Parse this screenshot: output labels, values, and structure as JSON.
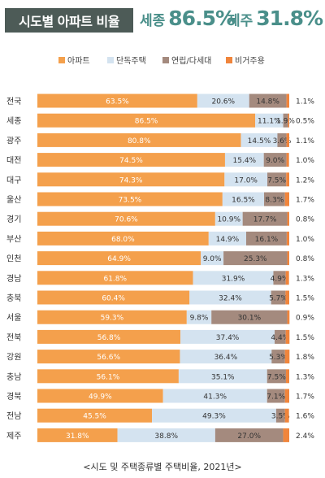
{
  "header": {
    "title": "시도별 아파트 비율",
    "highlights": [
      {
        "name": "세종",
        "value": "86.5%"
      },
      {
        "name": "제주",
        "value": "31.8%"
      }
    ]
  },
  "caption": "<시도 및 주택종류별 주택비율, 2021년>",
  "chart_data": {
    "type": "bar",
    "orientation": "horizontal",
    "stacked": true,
    "legend_position": "top",
    "categories": [
      "전국",
      "세종",
      "광주",
      "대전",
      "대구",
      "울산",
      "경기",
      "부산",
      "인천",
      "경남",
      "충북",
      "서울",
      "전북",
      "강원",
      "충남",
      "경북",
      "전남",
      "제주"
    ],
    "series": [
      {
        "name": "아파트",
        "color": "#f4a04c",
        "values": [
          63.5,
          86.5,
          80.8,
          74.5,
          74.3,
          73.5,
          70.6,
          68.0,
          64.9,
          61.8,
          60.4,
          59.3,
          56.8,
          56.6,
          56.1,
          49.9,
          45.5,
          31.8
        ]
      },
      {
        "name": "단독주택",
        "color": "#d4e3f0",
        "values": [
          20.6,
          11.1,
          14.5,
          15.4,
          17.0,
          16.5,
          10.9,
          14.9,
          9.0,
          31.9,
          32.4,
          9.8,
          37.4,
          36.4,
          35.1,
          41.3,
          49.3,
          38.8
        ]
      },
      {
        "name": "연립/다세대",
        "color": "#a48a7e",
        "values": [
          14.8,
          1.9,
          3.6,
          9.0,
          7.5,
          8.3,
          17.7,
          16.1,
          25.3,
          4.9,
          5.7,
          30.1,
          4.4,
          5.3,
          7.5,
          7.1,
          3.5,
          27.0
        ]
      },
      {
        "name": "비거주용",
        "color": "#f0853c",
        "values": [
          1.1,
          0.5,
          1.1,
          1.0,
          1.2,
          1.7,
          0.8,
          1.0,
          0.8,
          1.3,
          1.5,
          0.9,
          1.5,
          1.8,
          1.3,
          1.7,
          1.6,
          2.4
        ]
      }
    ],
    "value_labels": [
      [
        "63.5%",
        "20.6%",
        "14.8%",
        "1.1%"
      ],
      [
        "86.5%",
        "11.1%",
        "1.9%",
        "0.5%"
      ],
      [
        "80.8%",
        "14.5%",
        "3.6%",
        "1.1%"
      ],
      [
        "74.5%",
        "15.4%",
        "9.0%",
        "1.0%"
      ],
      [
        "74.3%",
        "17.0%",
        "7.5%",
        "1.2%"
      ],
      [
        "73.5%",
        "16.5%",
        "8.3%",
        "1.7%"
      ],
      [
        "70.6%",
        "10.9%",
        "17.7%",
        "0.8%"
      ],
      [
        "68.0%",
        "14.9%",
        "16.1%",
        "1.0%"
      ],
      [
        "64.9%",
        "9.0%",
        "25.3%",
        "0.8%"
      ],
      [
        "61.8%",
        "31.9%",
        "4.9%",
        "1.3%"
      ],
      [
        "60.4%",
        "32.4%",
        "5.7%",
        "1.5%"
      ],
      [
        "59.3%",
        "9.8%",
        "30.1%",
        "0.9%"
      ],
      [
        "56.8%",
        "37.4%",
        "4.4%",
        "1.5%"
      ],
      [
        "56.6%",
        "36.4%",
        "5.3%",
        "1.8%"
      ],
      [
        "56.1%",
        "35.1%",
        "7.5%",
        "1.3%"
      ],
      [
        "49.9%",
        "41.3%",
        "7.1%",
        "1.7%"
      ],
      [
        "45.5%",
        "49.3%",
        "3.5%",
        "1.6%"
      ],
      [
        "31.8%",
        "38.8%",
        "27.0%",
        "2.4%"
      ]
    ],
    "xlim": [
      0,
      100
    ]
  }
}
